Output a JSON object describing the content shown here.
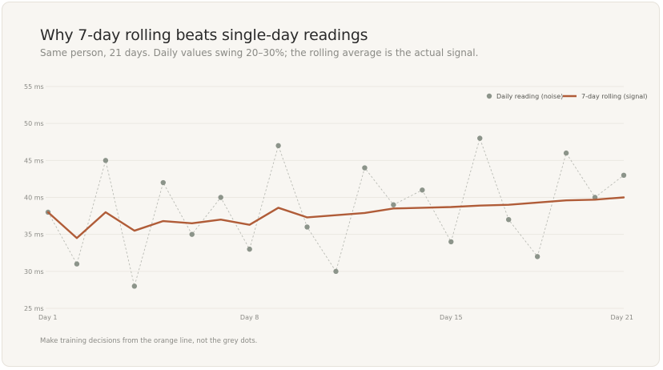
{
  "header": {
    "title": "Why 7-day rolling beats single-day readings",
    "subtitle": "Same person, 21 days. Daily values swing 20–30%; the rolling average is the actual signal."
  },
  "footnote": "Make training decisions from the orange line, not the grey dots.",
  "colors": {
    "daily": "#8c948a",
    "rolling": "#b05c38",
    "grid": "#ebe8e2"
  },
  "chart_data": {
    "type": "line",
    "x": [
      1,
      2,
      3,
      4,
      5,
      6,
      7,
      8,
      9,
      10,
      11,
      12,
      13,
      14,
      15,
      16,
      17,
      18,
      19,
      20,
      21
    ],
    "xticks": [
      1,
      8,
      15,
      21
    ],
    "xtick_labels": [
      "Day 1",
      "Day 8",
      "Day 15",
      "Day 21"
    ],
    "ylim": [
      25,
      55
    ],
    "yticks": [
      25,
      30,
      35,
      40,
      45,
      50,
      55
    ],
    "ytick_labels": [
      "25 ms",
      "30 ms",
      "35 ms",
      "40 ms",
      "45 ms",
      "50 ms",
      "55 ms"
    ],
    "legend_position": "top-right",
    "grid": true,
    "series": [
      {
        "name": "Daily reading (noise)",
        "style": "scatter-dashed",
        "values": [
          38,
          31,
          45,
          28,
          42,
          35,
          40,
          33,
          47,
          36,
          30,
          44,
          39,
          41,
          34,
          48,
          37,
          32,
          46,
          40,
          43
        ]
      },
      {
        "name": "7-day rolling (signal)",
        "style": "line",
        "values": [
          38,
          34.5,
          38,
          35.5,
          36.8,
          36.5,
          37,
          36.3,
          38.6,
          37.3,
          37.6,
          37.9,
          38.5,
          38.6,
          38.7,
          38.9,
          39.0,
          39.3,
          39.6,
          39.7,
          40.0
        ]
      }
    ]
  }
}
